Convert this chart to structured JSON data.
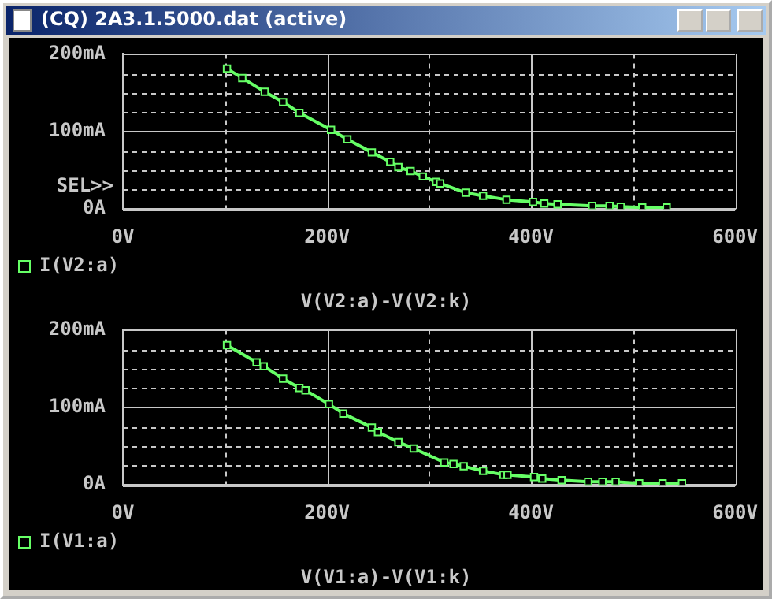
{
  "chart_data": [
    {
      "type": "line",
      "title": "(CQ) 2A3.1.5000.dat (active)",
      "xlabel": "V(V2:a)-V(V2:k)",
      "legend": "bottom left",
      "marker": "square",
      "grid": true,
      "annotations": [
        "SEL>>"
      ],
      "xlim": [
        0,
        600
      ],
      "xticks": [
        {
          "value": 0,
          "label": "0V"
        },
        {
          "value": 100,
          "label": null
        },
        {
          "value": 200,
          "label": "200V"
        },
        {
          "value": 300,
          "label": null
        },
        {
          "value": 400,
          "label": "400V"
        },
        {
          "value": 500,
          "label": null
        },
        {
          "value": 600,
          "label": "600V"
        }
      ],
      "ylim": [
        0,
        200
      ],
      "yticks": [
        {
          "value": 0,
          "label": "0A"
        },
        {
          "value": 25,
          "label": null
        },
        {
          "value": 50,
          "label": null
        },
        {
          "value": 75,
          "label": null
        },
        {
          "value": 100,
          "label": "100mA"
        },
        {
          "value": 125,
          "label": null
        },
        {
          "value": 150,
          "label": null
        },
        {
          "value": 175,
          "label": null
        },
        {
          "value": 200,
          "label": "200mA"
        }
      ],
      "series": [
        {
          "name": "I(V2:a)",
          "color": "#66ff66",
          "x": [
            102,
            117,
            139,
            157,
            173,
            204,
            220,
            244,
            262,
            270,
            282,
            294,
            307,
            311,
            336,
            353,
            376,
            402,
            413,
            426,
            460,
            477,
            488,
            509,
            533
          ],
          "values": [
            181,
            169,
            151,
            138,
            124,
            102,
            90,
            73,
            61,
            54,
            49,
            42,
            35,
            33,
            21,
            17,
            12,
            9,
            7,
            6,
            4,
            4,
            3,
            2,
            2
          ]
        }
      ]
    },
    {
      "type": "line",
      "xlabel": "V(V1:a)-V(V1:k)",
      "legend": "bottom left",
      "marker": "square",
      "grid": true,
      "xlim": [
        0,
        600
      ],
      "xticks": [
        {
          "value": 0,
          "label": "0V"
        },
        {
          "value": 100,
          "label": null
        },
        {
          "value": 200,
          "label": "200V"
        },
        {
          "value": 300,
          "label": null
        },
        {
          "value": 400,
          "label": "400V"
        },
        {
          "value": 500,
          "label": null
        },
        {
          "value": 600,
          "label": "600V"
        }
      ],
      "ylim": [
        0,
        200
      ],
      "yticks": [
        {
          "value": 0,
          "label": "0A"
        },
        {
          "value": 25,
          "label": null
        },
        {
          "value": 50,
          "label": null
        },
        {
          "value": 75,
          "label": null
        },
        {
          "value": 100,
          "label": "100mA"
        },
        {
          "value": 125,
          "label": null
        },
        {
          "value": 150,
          "label": null
        },
        {
          "value": 175,
          "label": null
        },
        {
          "value": 200,
          "label": "200mA"
        }
      ],
      "series": [
        {
          "name": "I(V1:a)",
          "color": "#66ff66",
          "x": [
            102,
            131,
            138,
            157,
            173,
            179,
            202,
            216,
            244,
            250,
            270,
            285,
            315,
            324,
            334,
            353,
            373,
            377,
            403,
            411,
            430,
            456,
            470,
            483,
            506,
            529,
            548
          ],
          "values": [
            180,
            158,
            153,
            137,
            125,
            122,
            104,
            92,
            74,
            68,
            55,
            47,
            29,
            27,
            24,
            18,
            13,
            13,
            10,
            8,
            6,
            4,
            4,
            4,
            2,
            2,
            2
          ]
        }
      ]
    }
  ]
}
